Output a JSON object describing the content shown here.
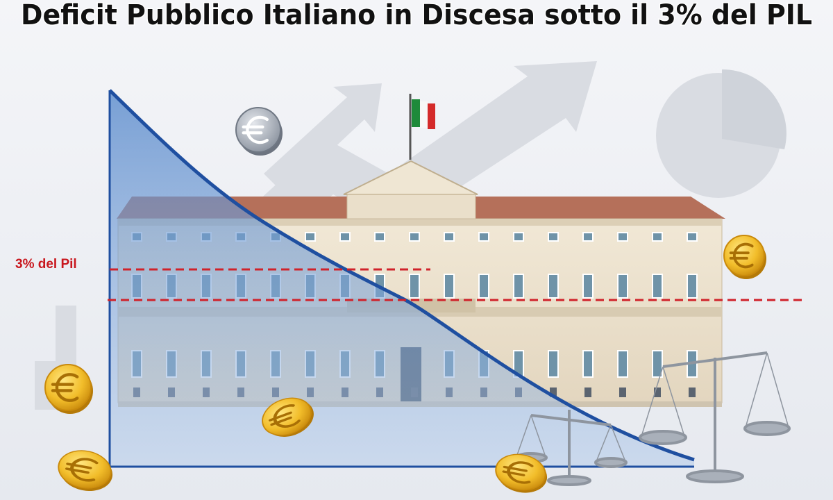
{
  "header": {
    "title": "Deficit Pubblico Italiano in Discesa sotto il 3% del PIL"
  },
  "annotation": {
    "label": "3% del Pil"
  }
}
